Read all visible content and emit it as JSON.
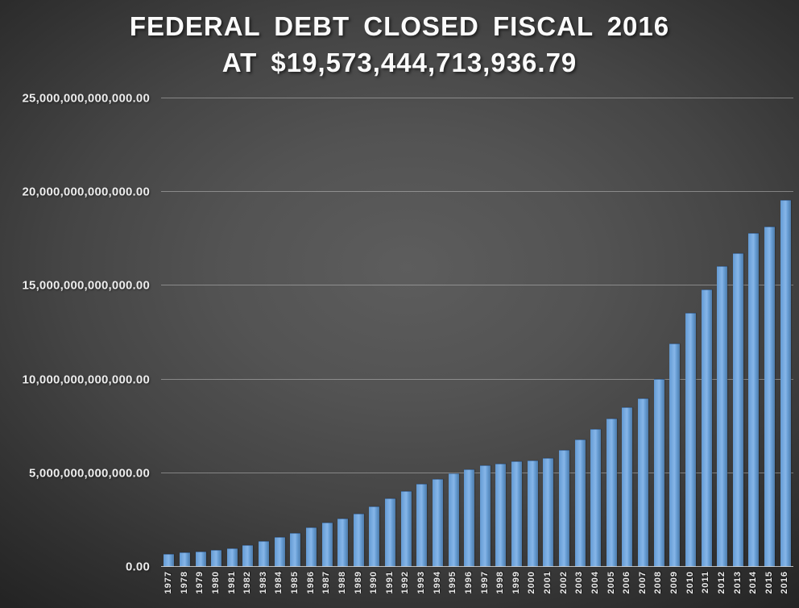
{
  "title": {
    "line1": "FEDERAL DEBT CLOSED FISCAL 2016",
    "line2": "AT $19,573,444,713,936.79"
  },
  "chart_data": {
    "type": "bar",
    "title": "FEDERAL DEBT CLOSED FISCAL 2016 AT $19,573,444,713,936.79",
    "xlabel": "",
    "ylabel": "",
    "ylim": [
      0,
      25000000000000
    ],
    "grid": true,
    "legend": false,
    "categories": [
      "1977",
      "1978",
      "1979",
      "1980",
      "1981",
      "1982",
      "1983",
      "1984",
      "1985",
      "1986",
      "1987",
      "1988",
      "1989",
      "1990",
      "1991",
      "1992",
      "1993",
      "1994",
      "1995",
      "1996",
      "1997",
      "1998",
      "1999",
      "2000",
      "2001",
      "2002",
      "2003",
      "2004",
      "2005",
      "2006",
      "2007",
      "2008",
      "2009",
      "2010",
      "2011",
      "2012",
      "2013",
      "2014",
      "2015",
      "2016"
    ],
    "values": [
      698840000000,
      771544000000,
      826519000000,
      907701000000,
      997855000000,
      1142034000000,
      1377210000000,
      1572266000000,
      1823103000000,
      2125302000000,
      2350276000000,
      2602337000000,
      2857430000000,
      3233313000000,
      3665303000000,
      4064620000000,
      4411488000000,
      4692749000000,
      4973982000000,
      5224810000000,
      5413146000000,
      5526193000000,
      5656270000000,
      5674178000000,
      5807463000000,
      6228235000000,
      6783231000000,
      7379052000000,
      7932709000000,
      8506973000000,
      9007653000000,
      10024724000000,
      11909829000000,
      13561623000000,
      14790340000000,
      16066241000000,
      16738183000000,
      17824071000000,
      18150617000000,
      19573444713936.79
    ],
    "y_ticks": [
      {
        "value": 0,
        "label": "0.00"
      },
      {
        "value": 5000000000000,
        "label": "5,000,000,000,000.00"
      },
      {
        "value": 10000000000000,
        "label": "10,000,000,000,000.00"
      },
      {
        "value": 15000000000000,
        "label": "15,000,000,000,000.00"
      },
      {
        "value": 20000000000000,
        "label": "20,000,000,000,000.00"
      },
      {
        "value": 25000000000000,
        "label": "25,000,000,000,000.00"
      }
    ],
    "colors": {
      "bar_light": "#86b5e8",
      "bar_mid": "#6fa5df",
      "bar_dark": "#4e7cab",
      "background_center": "#5d5d5d",
      "background_edge": "#242424",
      "gridline": "#c6c6c6",
      "text": "#ececec",
      "title_text": "#fbfbfb"
    }
  }
}
